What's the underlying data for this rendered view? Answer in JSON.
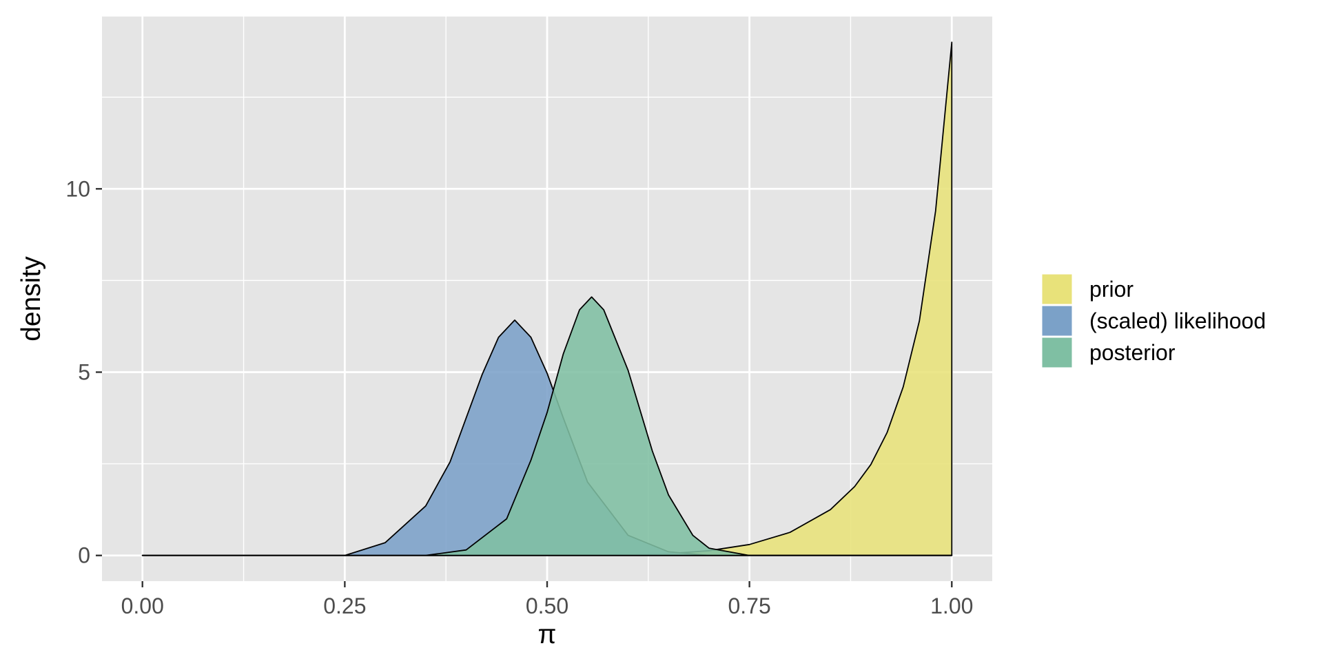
{
  "chart_data": {
    "type": "area",
    "title": "",
    "xlabel": "π",
    "ylabel": "density",
    "xlim": [
      -0.05,
      1.05
    ],
    "ylim": [
      -0.7,
      14.7
    ],
    "x_ticks": [
      0.0,
      0.25,
      0.5,
      0.75,
      1.0
    ],
    "x_tick_labels": [
      "0.00",
      "0.25",
      "0.50",
      "0.75",
      "1.00"
    ],
    "x_minor_ticks": [
      0.125,
      0.375,
      0.625,
      0.875
    ],
    "y_ticks": [
      0,
      5,
      10
    ],
    "y_tick_labels": [
      "0",
      "5",
      "10"
    ],
    "y_minor_ticks": [
      2.5,
      7.5,
      12.5
    ],
    "grid": true,
    "legend_position": "right",
    "series": [
      {
        "name": "prior",
        "color": "#e8e27a",
        "x": [
          0.0,
          0.5,
          0.6,
          0.65,
          0.7,
          0.75,
          0.8,
          0.85,
          0.88,
          0.9,
          0.92,
          0.94,
          0.96,
          0.98,
          1.0
        ],
        "values": [
          0.0,
          0.0,
          0.02,
          0.05,
          0.13,
          0.3,
          0.63,
          1.25,
          1.88,
          2.48,
          3.35,
          4.6,
          6.4,
          9.4,
          14.0
        ]
      },
      {
        "name": "(scaled) likelihood",
        "color": "#7ba1c8",
        "x": [
          0.0,
          0.25,
          0.3,
          0.35,
          0.38,
          0.4,
          0.42,
          0.44,
          0.46,
          0.48,
          0.5,
          0.52,
          0.55,
          0.6,
          0.65,
          0.7,
          0.75,
          1.0
        ],
        "values": [
          0.0,
          0.0,
          0.35,
          1.35,
          2.55,
          3.75,
          4.95,
          5.95,
          6.42,
          5.95,
          4.97,
          3.75,
          2.0,
          0.55,
          0.1,
          0.0,
          0.0,
          0.0
        ]
      },
      {
        "name": "posterior",
        "color": "#7fbfa3",
        "x": [
          0.0,
          0.35,
          0.4,
          0.45,
          0.48,
          0.5,
          0.52,
          0.54,
          0.555,
          0.57,
          0.6,
          0.63,
          0.65,
          0.68,
          0.7,
          0.75,
          1.0
        ],
        "values": [
          0.0,
          0.0,
          0.15,
          1.0,
          2.6,
          3.9,
          5.5,
          6.7,
          7.05,
          6.7,
          5.05,
          2.85,
          1.65,
          0.55,
          0.2,
          0.0,
          0.0
        ]
      }
    ]
  }
}
